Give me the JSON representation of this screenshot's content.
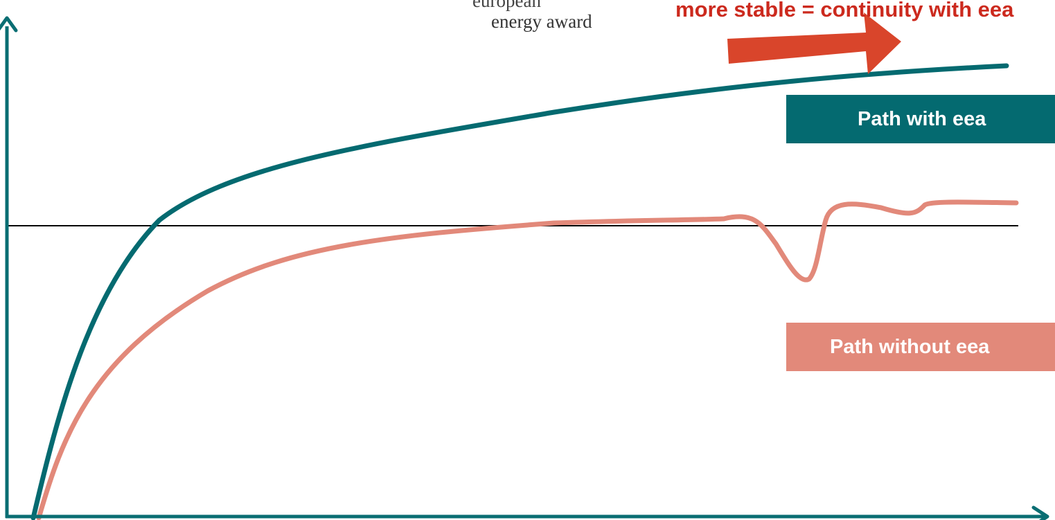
{
  "logo": {
    "line1": "european",
    "line2": "energy award"
  },
  "headline": {
    "text": "more stable = continuity with eea"
  },
  "labels": {
    "with_eea": "Path with eea",
    "without_eea": "Path without eea"
  },
  "colors": {
    "with_eea": "#046a70",
    "without_eea": "#e2897a",
    "headline": "#cc2a1e",
    "arrow": "#d9452b",
    "axis": "#0a6e73",
    "reference_line": "#000000"
  }
}
